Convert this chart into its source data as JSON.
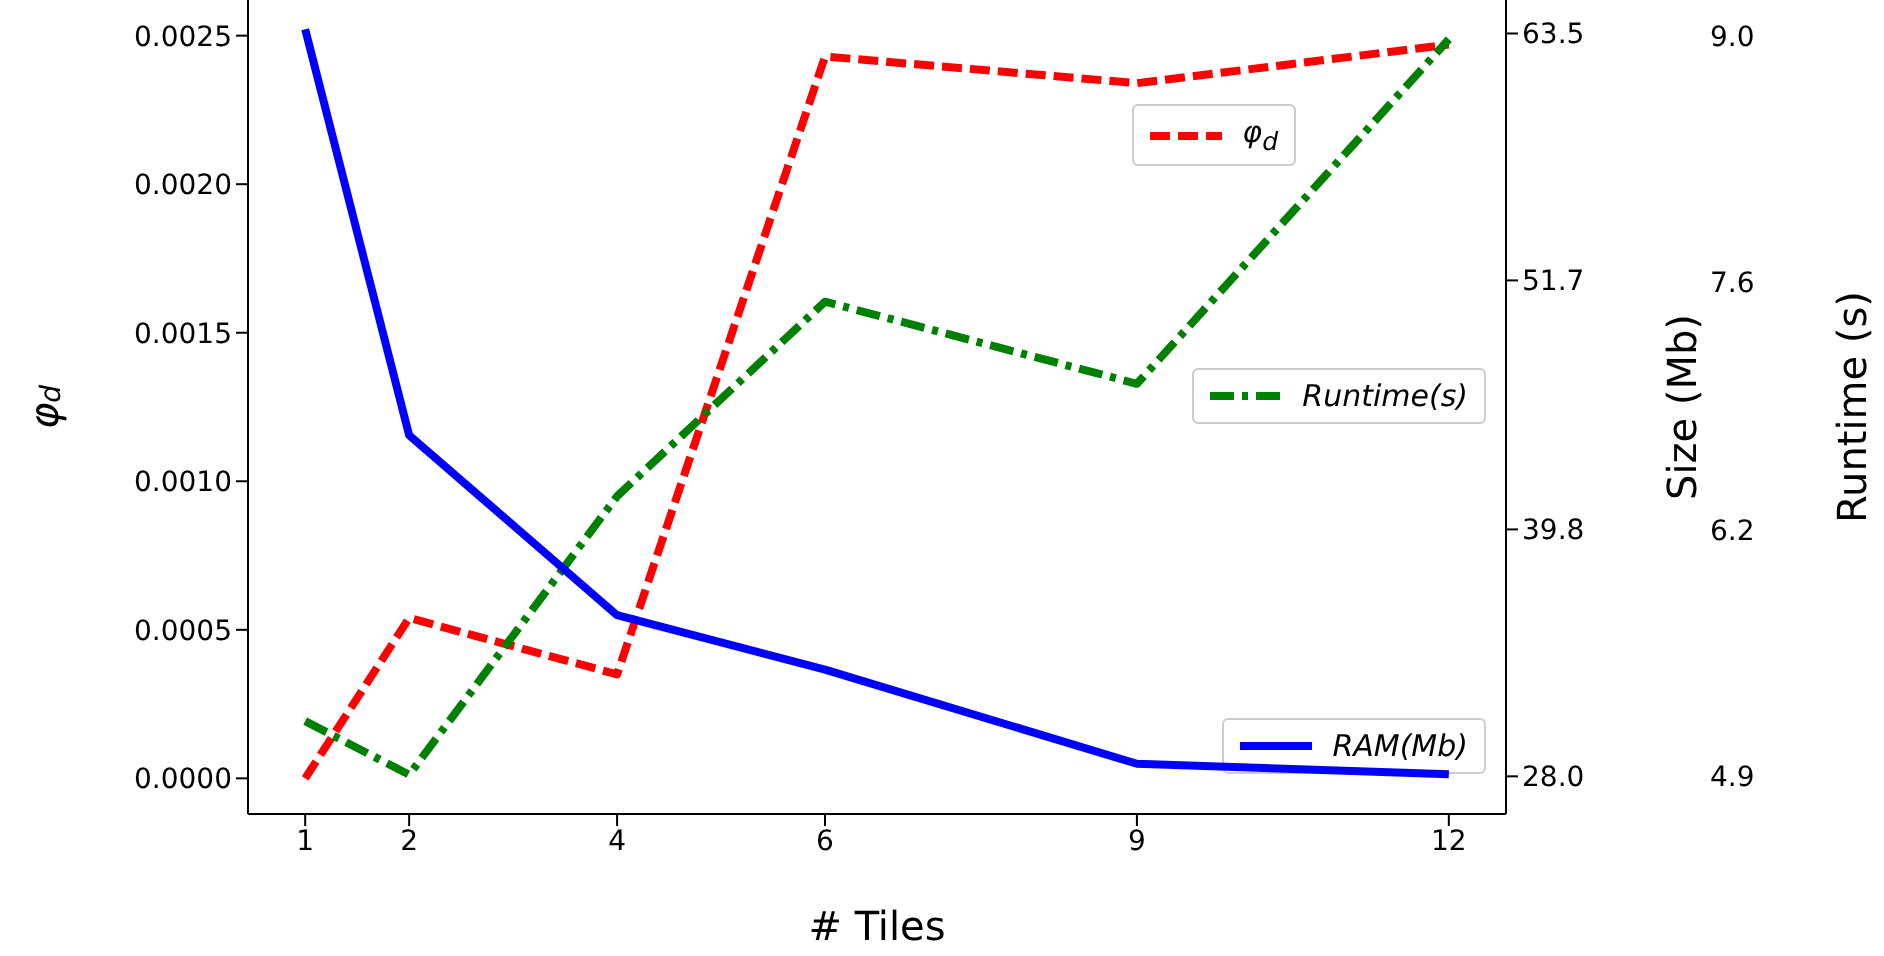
{
  "chart_data": {
    "type": "line",
    "xlabel": "# Tiles",
    "ylabel": "φ$_{d}$",
    "y2label": "Size (Mb)",
    "y3label": "Runtime (s)",
    "x": [
      1,
      2,
      4,
      6,
      9,
      12
    ],
    "xlim": [
      0.45,
      12.55
    ],
    "xticks": [
      1,
      2,
      4,
      6,
      9,
      12
    ],
    "ylim": [
      -0.00012,
      0.00262
    ],
    "yticks": [
      {
        "value": 0,
        "label": "0.0000"
      },
      {
        "value": 0.0005,
        "label": "0.0005"
      },
      {
        "value": 0.001,
        "label": "0.0010"
      },
      {
        "value": 0.0015,
        "label": "0.0015"
      },
      {
        "value": 0.002,
        "label": "0.0020"
      },
      {
        "value": 0.0025,
        "label": "0.0025"
      }
    ],
    "y2lim": [
      26.2,
      65.1
    ],
    "y2ticks": [
      {
        "value": 28,
        "label": "28.0"
      },
      {
        "value": 39.8,
        "label": "39.8"
      },
      {
        "value": 51.7,
        "label": "51.7"
      },
      {
        "value": 63.5,
        "label": "63.5"
      }
    ],
    "y3lim": [
      4.65,
      9.21
    ],
    "y3ticks": [
      {
        "value": 4.86,
        "label": "4.9"
      },
      {
        "value": 6.24,
        "label": "6.2"
      },
      {
        "value": 7.63,
        "label": "7.6"
      },
      {
        "value": 9.01,
        "label": "9.0"
      }
    ],
    "legend": "right",
    "series": [
      {
        "name": "φ$_{d}$",
        "color": "#ff0000",
        "line_style": "dashed",
        "values": [
          0,
          0.00054,
          0.00035,
          0.00243,
          0.00234,
          0.00247
        ]
      },
      {
        "name": "Runtime(s)",
        "color": "#008000",
        "line_style": "dashdot",
        "axis": "y3",
        "values": [
          5.17,
          4.87,
          6.43,
          7.52,
          7.06,
          8.99
        ]
      },
      {
        "name": "RAM(Mb)",
        "color": "#0000ff",
        "line_style": "solid",
        "axis": "y2",
        "values": [
          63.7,
          44.3,
          35.7,
          33.1,
          28.6,
          28.1
        ]
      }
    ]
  }
}
